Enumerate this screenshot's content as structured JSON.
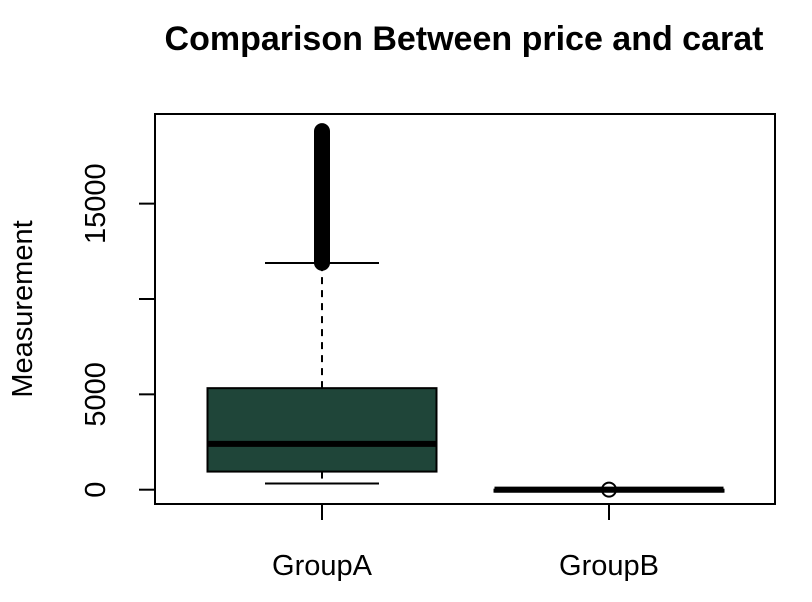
{
  "chart_data": {
    "type": "boxplot",
    "title": "Comparison Between price and carat",
    "xlabel": "",
    "ylabel": "Measurement",
    "ylim": [
      -750,
      19700
    ],
    "yticks": [
      0,
      5000,
      10000,
      15000
    ],
    "ytick_labels": [
      "0",
      "5000",
      "",
      "15000"
    ],
    "categories": [
      "GroupA",
      "GroupB"
    ],
    "colors": {
      "GroupA": "#1f4539",
      "GroupB": "#1f4539",
      "stroke": "#000000"
    },
    "boxes": [
      {
        "name": "GroupA",
        "whisker_low": 326,
        "q1": 950,
        "median": 2401,
        "q3": 5324,
        "whisker_high": 11886,
        "outliers_range": [
          11900,
          18823
        ]
      },
      {
        "name": "GroupB",
        "whisker_low": 0.2,
        "q1": 0.4,
        "median": 0.7,
        "q3": 1.04,
        "whisker_high": 2.0,
        "outliers_range": [
          2.0,
          5.0
        ]
      }
    ]
  }
}
